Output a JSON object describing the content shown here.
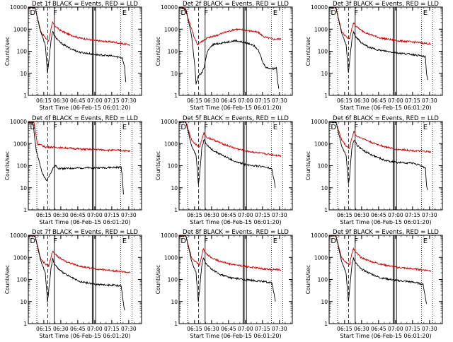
{
  "chart_data": {
    "type": "line",
    "common": {
      "ylabel": "Counts/sec",
      "xlabel": "Start Time (06-Feb-15 06:01:20)",
      "x_ticks": [
        "06:15",
        "06:30",
        "06:45",
        "07:00",
        "07:15",
        "07:30"
      ],
      "y_ticks": [
        "1",
        "10",
        "100",
        "1000",
        "10000"
      ],
      "x_tick_minutes": [
        13.67,
        28.67,
        43.67,
        58.67,
        73.67,
        88.67
      ],
      "xlim_minutes": [
        0,
        100
      ],
      "ylim": [
        1,
        10000
      ],
      "yscale": "log",
      "series": [
        {
          "name": "Events",
          "color": "#000000"
        },
        {
          "name": "LLD",
          "color": "#cc0000"
        }
      ],
      "markers": {
        "dotted": [
          7.5,
          81.5,
          91.5
        ],
        "dashed": [
          17.2
        ],
        "solid": [
          23.0,
          56.5,
          57.5,
          59.5
        ]
      },
      "letters": [
        {
          "text": "D",
          "minute": 1.5
        },
        {
          "text": "F",
          "minute": 22.0
        },
        {
          "text": "E",
          "minute": 83.0
        }
      ]
    },
    "panels": [
      {
        "title": "Det 1f  BLACK = Events, RED = LLD",
        "red": [
          [
            0,
            9500
          ],
          [
            6,
            9500
          ],
          [
            11,
            800
          ],
          [
            15,
            400
          ],
          [
            18,
            300
          ],
          [
            20,
            1000
          ],
          [
            21.5,
            2000
          ],
          [
            23,
            1500
          ],
          [
            28,
            900
          ],
          [
            35,
            600
          ],
          [
            45,
            400
          ],
          [
            60,
            300
          ],
          [
            75,
            260
          ],
          [
            88,
            200
          ],
          [
            90,
            190
          ]
        ],
        "black": [
          [
            0,
            9500
          ],
          [
            6,
            9500
          ],
          [
            11,
            700
          ],
          [
            15,
            200
          ],
          [
            17,
            10
          ],
          [
            18,
            30
          ],
          [
            20,
            300
          ],
          [
            21.5,
            800
          ],
          [
            23,
            500
          ],
          [
            28,
            250
          ],
          [
            35,
            150
          ],
          [
            45,
            90
          ],
          [
            60,
            70
          ],
          [
            75,
            60
          ],
          [
            83,
            50
          ],
          [
            85,
            20
          ],
          [
            86,
            4
          ]
        ]
      },
      {
        "title": "Det 2f  BLACK = Events, RED = LLD",
        "red": [
          [
            0,
            10000
          ],
          [
            5,
            9000
          ],
          [
            10,
            1500
          ],
          [
            13,
            500
          ],
          [
            16,
            200
          ],
          [
            20,
            280
          ],
          [
            25,
            400
          ],
          [
            32,
            500
          ],
          [
            40,
            700
          ],
          [
            50,
            1000
          ],
          [
            58,
            900
          ],
          [
            65,
            800
          ],
          [
            70,
            700
          ],
          [
            75,
            450
          ],
          [
            83,
            350
          ],
          [
            90,
            360
          ]
        ],
        "black": [
          [
            0,
            10000
          ],
          [
            6,
            8000
          ],
          [
            11,
            500
          ],
          [
            14,
            20
          ],
          [
            15,
            3
          ],
          [
            17,
            8
          ],
          [
            20,
            10
          ],
          [
            22,
            18
          ],
          [
            25,
            100
          ],
          [
            30,
            200
          ],
          [
            40,
            250
          ],
          [
            50,
            300
          ],
          [
            60,
            230
          ],
          [
            65,
            200
          ],
          [
            70,
            120
          ],
          [
            74,
            30
          ],
          [
            77,
            18
          ],
          [
            83,
            16
          ],
          [
            86,
            18
          ],
          [
            87,
            5
          ],
          [
            88,
            2
          ]
        ]
      },
      {
        "title": "Det 3f  BLACK = Events, RED = LLD",
        "red": [
          [
            0,
            9500
          ],
          [
            6,
            9500
          ],
          [
            11,
            800
          ],
          [
            15,
            450
          ],
          [
            18,
            350
          ],
          [
            20,
            1000
          ],
          [
            21.5,
            2000
          ],
          [
            23,
            1500
          ],
          [
            28,
            900
          ],
          [
            35,
            600
          ],
          [
            45,
            400
          ],
          [
            60,
            300
          ],
          [
            75,
            260
          ],
          [
            88,
            220
          ],
          [
            90,
            200
          ]
        ],
        "black": [
          [
            0,
            9500
          ],
          [
            6,
            9500
          ],
          [
            11,
            700
          ],
          [
            15,
            200
          ],
          [
            17,
            10
          ],
          [
            18,
            30
          ],
          [
            20,
            300
          ],
          [
            21.5,
            800
          ],
          [
            23,
            500
          ],
          [
            28,
            250
          ],
          [
            35,
            150
          ],
          [
            45,
            110
          ],
          [
            60,
            85
          ],
          [
            75,
            70
          ],
          [
            82,
            60
          ],
          [
            85,
            55
          ],
          [
            86,
            10
          ],
          [
            87,
            5
          ]
        ]
      },
      {
        "title": "Det 4f  BLACK = Events, RED = LLD",
        "red": [
          [
            0,
            9000
          ],
          [
            5,
            9000
          ],
          [
            8,
            1000
          ],
          [
            15,
            700
          ],
          [
            20,
            700
          ],
          [
            30,
            650
          ],
          [
            40,
            600
          ],
          [
            50,
            550
          ],
          [
            60,
            550
          ],
          [
            70,
            500
          ],
          [
            80,
            500
          ],
          [
            90,
            450
          ]
        ],
        "black": [
          [
            0,
            9000
          ],
          [
            4,
            9000
          ],
          [
            7,
            500
          ],
          [
            12,
            50
          ],
          [
            16,
            20
          ],
          [
            20,
            50
          ],
          [
            22,
            80
          ],
          [
            24,
            100
          ],
          [
            27,
            75
          ],
          [
            35,
            75
          ],
          [
            50,
            80
          ],
          [
            60,
            80
          ],
          [
            70,
            82
          ],
          [
            82,
            85
          ],
          [
            83,
            30
          ],
          [
            84,
            5
          ]
        ]
      },
      {
        "title": "Det 5f  BLACK = Events, RED = LLD",
        "red": [
          [
            0,
            9500
          ],
          [
            6,
            9500
          ],
          [
            11,
            1500
          ],
          [
            15,
            900
          ],
          [
            18,
            700
          ],
          [
            20,
            1500
          ],
          [
            22,
            3000
          ],
          [
            24,
            2000
          ],
          [
            30,
            1500
          ],
          [
            38,
            1000
          ],
          [
            50,
            600
          ],
          [
            60,
            450
          ],
          [
            75,
            350
          ],
          [
            85,
            300
          ],
          [
            90,
            280
          ]
        ],
        "black": [
          [
            0,
            9500
          ],
          [
            6,
            9500
          ],
          [
            11,
            800
          ],
          [
            15,
            300
          ],
          [
            17,
            15
          ],
          [
            18,
            30
          ],
          [
            20,
            600
          ],
          [
            22,
            1500
          ],
          [
            25,
            800
          ],
          [
            30,
            500
          ],
          [
            38,
            300
          ],
          [
            50,
            150
          ],
          [
            60,
            110
          ],
          [
            75,
            90
          ],
          [
            82,
            70
          ],
          [
            84,
            20
          ],
          [
            85,
            10
          ]
        ]
      },
      {
        "title": "Det 6f  BLACK = Events, RED = LLD",
        "red": [
          [
            0,
            9500
          ],
          [
            6,
            9500
          ],
          [
            11,
            1500
          ],
          [
            15,
            800
          ],
          [
            18,
            600
          ],
          [
            20,
            1800
          ],
          [
            22,
            3500
          ],
          [
            24,
            2200
          ],
          [
            30,
            1700
          ],
          [
            38,
            1100
          ],
          [
            50,
            700
          ],
          [
            60,
            550
          ],
          [
            75,
            480
          ],
          [
            90,
            420
          ]
        ],
        "black": [
          [
            0,
            9500
          ],
          [
            6,
            9500
          ],
          [
            11,
            800
          ],
          [
            15,
            300
          ],
          [
            17,
            15
          ],
          [
            18,
            30
          ],
          [
            20,
            600
          ],
          [
            22,
            1500
          ],
          [
            25,
            800
          ],
          [
            30,
            500
          ],
          [
            38,
            300
          ],
          [
            50,
            170
          ],
          [
            60,
            140
          ],
          [
            75,
            130
          ],
          [
            85,
            80
          ],
          [
            86,
            12
          ],
          [
            87,
            8
          ]
        ]
      },
      {
        "title": "Det 7f  BLACK = Events, RED = LLD",
        "red": [
          [
            0,
            9500
          ],
          [
            6,
            9500
          ],
          [
            11,
            800
          ],
          [
            15,
            500
          ],
          [
            18,
            400
          ],
          [
            20,
            1000
          ],
          [
            21.5,
            2000
          ],
          [
            23,
            1500
          ],
          [
            28,
            900
          ],
          [
            35,
            600
          ],
          [
            45,
            400
          ],
          [
            60,
            300
          ],
          [
            75,
            250
          ],
          [
            85,
            220
          ],
          [
            90,
            200
          ]
        ],
        "black": [
          [
            0,
            9500
          ],
          [
            6,
            9500
          ],
          [
            11,
            700
          ],
          [
            15,
            200
          ],
          [
            17,
            10
          ],
          [
            18,
            30
          ],
          [
            20,
            300
          ],
          [
            21.5,
            900
          ],
          [
            23,
            500
          ],
          [
            28,
            250
          ],
          [
            35,
            150
          ],
          [
            45,
            80
          ],
          [
            60,
            60
          ],
          [
            75,
            55
          ],
          [
            82,
            50
          ],
          [
            84,
            8
          ],
          [
            85,
            4
          ]
        ]
      },
      {
        "title": "Det 8f  BLACK = Events, RED = LLD",
        "red": [
          [
            0,
            9500
          ],
          [
            6,
            9500
          ],
          [
            11,
            1000
          ],
          [
            15,
            600
          ],
          [
            18,
            450
          ],
          [
            20,
            1200
          ],
          [
            21.5,
            2500
          ],
          [
            23,
            1700
          ],
          [
            28,
            1000
          ],
          [
            35,
            700
          ],
          [
            45,
            500
          ],
          [
            60,
            380
          ],
          [
            75,
            300
          ],
          [
            90,
            270
          ]
        ],
        "black": [
          [
            0,
            9500
          ],
          [
            6,
            9500
          ],
          [
            11,
            700
          ],
          [
            15,
            200
          ],
          [
            17,
            10
          ],
          [
            18,
            30
          ],
          [
            20,
            400
          ],
          [
            21.5,
            1000
          ],
          [
            23,
            600
          ],
          [
            28,
            300
          ],
          [
            35,
            180
          ],
          [
            45,
            120
          ],
          [
            60,
            95
          ],
          [
            75,
            80
          ],
          [
            82,
            70
          ],
          [
            84,
            20
          ],
          [
            85,
            10
          ]
        ]
      },
      {
        "title": "Det 9f  BLACK = Events, RED = LLD",
        "red": [
          [
            0,
            9500
          ],
          [
            6,
            9500
          ],
          [
            11,
            1000
          ],
          [
            15,
            600
          ],
          [
            18,
            450
          ],
          [
            20,
            1500
          ],
          [
            21.5,
            2500
          ],
          [
            23,
            1800
          ],
          [
            28,
            1000
          ],
          [
            35,
            700
          ],
          [
            45,
            500
          ],
          [
            60,
            350
          ],
          [
            75,
            300
          ],
          [
            90,
            250
          ]
        ],
        "black": [
          [
            0,
            9500
          ],
          [
            6,
            9500
          ],
          [
            11,
            700
          ],
          [
            15,
            200
          ],
          [
            17,
            10
          ],
          [
            18,
            30
          ],
          [
            20,
            400
          ],
          [
            21.5,
            1000
          ],
          [
            23,
            600
          ],
          [
            28,
            300
          ],
          [
            35,
            200
          ],
          [
            45,
            120
          ],
          [
            60,
            90
          ],
          [
            75,
            75
          ],
          [
            83,
            60
          ],
          [
            85,
            15
          ],
          [
            86,
            8
          ]
        ]
      }
    ]
  }
}
